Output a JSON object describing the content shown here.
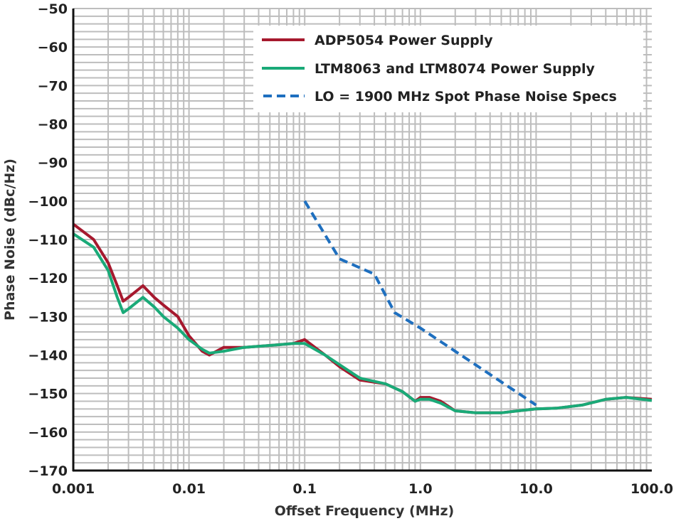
{
  "chart_data": {
    "type": "line",
    "xlabel": "Offset Frequency (MHz)",
    "ylabel": "Phase Noise (dBc/Hz)",
    "x_scale": "log",
    "xlim": [
      0.001,
      100
    ],
    "ylim": [
      -170,
      -50
    ],
    "x_ticks": [
      "0.001",
      "0.01",
      "0.1",
      "1.0",
      "10.0",
      "100.0"
    ],
    "x_tick_values": [
      0.001,
      0.01,
      0.1,
      1,
      10,
      100
    ],
    "y_ticks": [
      "−50",
      "−60",
      "−70",
      "−80",
      "−90",
      "−100",
      "−110",
      "−120",
      "−130",
      "−140",
      "−150",
      "−160",
      "−170"
    ],
    "y_tick_values": [
      -50,
      -60,
      -70,
      -80,
      -90,
      -100,
      -110,
      -120,
      -130,
      -140,
      -150,
      -160,
      -170
    ],
    "grid": true,
    "legend_position": "top-right",
    "series": [
      {
        "name": "ADP5054 Power Supply",
        "color": "#a6192e",
        "style": "solid",
        "x": [
          0.001,
          0.0015,
          0.002,
          0.0024,
          0.0027,
          0.003,
          0.004,
          0.005,
          0.006,
          0.008,
          0.01,
          0.013,
          0.015,
          0.02,
          0.03,
          0.05,
          0.08,
          0.1,
          0.15,
          0.2,
          0.3,
          0.5,
          0.7,
          0.9,
          1.0,
          1.2,
          1.5,
          2,
          3,
          5,
          7,
          10,
          15,
          25,
          40,
          60,
          100
        ],
        "y": [
          -106,
          -110,
          -116,
          -122,
          -126,
          -125,
          -122,
          -125,
          -127,
          -130,
          -135,
          -139,
          -140,
          -138,
          -138,
          -137.5,
          -137,
          -136,
          -140,
          -143,
          -146.5,
          -147.5,
          -149.5,
          -152,
          -151,
          -151,
          -152,
          -154.5,
          -155,
          -155,
          -154.5,
          -154,
          -153.8,
          -153,
          -151.5,
          -151,
          -151.5
        ]
      },
      {
        "name": "LTM8063 and LTM8074 Power Supply",
        "color": "#1aaa78",
        "style": "solid",
        "x": [
          0.001,
          0.0015,
          0.002,
          0.0024,
          0.0027,
          0.003,
          0.004,
          0.005,
          0.006,
          0.008,
          0.01,
          0.013,
          0.015,
          0.02,
          0.03,
          0.05,
          0.08,
          0.1,
          0.15,
          0.2,
          0.3,
          0.5,
          0.7,
          0.9,
          1.0,
          1.2,
          1.5,
          2,
          3,
          5,
          7,
          10,
          15,
          25,
          40,
          60,
          100
        ],
        "y": [
          -108.5,
          -112,
          -118,
          -125,
          -129,
          -128,
          -125,
          -127.5,
          -130,
          -133,
          -136,
          -138.5,
          -139.5,
          -139,
          -138,
          -137.5,
          -137,
          -137,
          -140,
          -142.5,
          -146,
          -147.5,
          -149.5,
          -152,
          -151.5,
          -151.5,
          -152.5,
          -154.5,
          -155,
          -155,
          -154.5,
          -154,
          -153.8,
          -153,
          -151.5,
          -151,
          -151.8
        ]
      },
      {
        "name": "LO = 1900 MHz Spot Phase Noise Specs",
        "color": "#1e6fbf",
        "style": "dashed",
        "x": [
          0.1,
          0.2,
          0.4,
          0.6,
          1.0,
          10
        ],
        "y": [
          -100,
          -115,
          -119,
          -129,
          -133,
          -153
        ]
      }
    ]
  }
}
